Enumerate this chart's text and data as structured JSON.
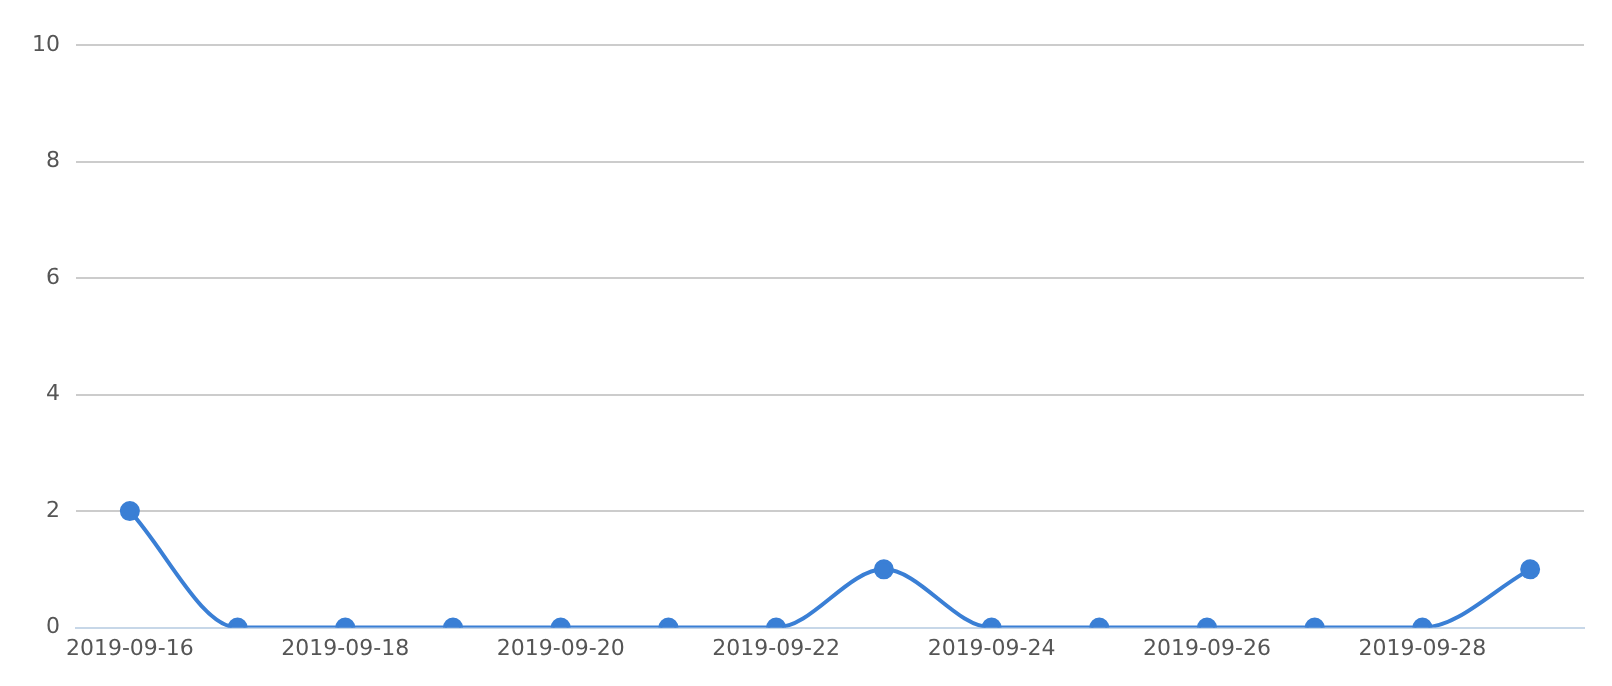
{
  "chart_data": {
    "type": "line",
    "categories": [
      "2019-09-16",
      null,
      "2019-09-18",
      null,
      "2019-09-20",
      null,
      "2019-09-22",
      null,
      "2019-09-24",
      null,
      "2019-09-26",
      null,
      "2019-09-28",
      null
    ],
    "series": [
      {
        "color": "#3a7fd5",
        "values": [
          2,
          0,
          0,
          0,
          0,
          0,
          0,
          1,
          0,
          0,
          0,
          0,
          0,
          1
        ]
      }
    ],
    "ylim": [
      0,
      10
    ],
    "yticks": [
      0,
      2,
      4,
      6,
      8,
      10
    ],
    "grid": "y",
    "legend": false,
    "marker": "circle",
    "line_style": "solid"
  }
}
